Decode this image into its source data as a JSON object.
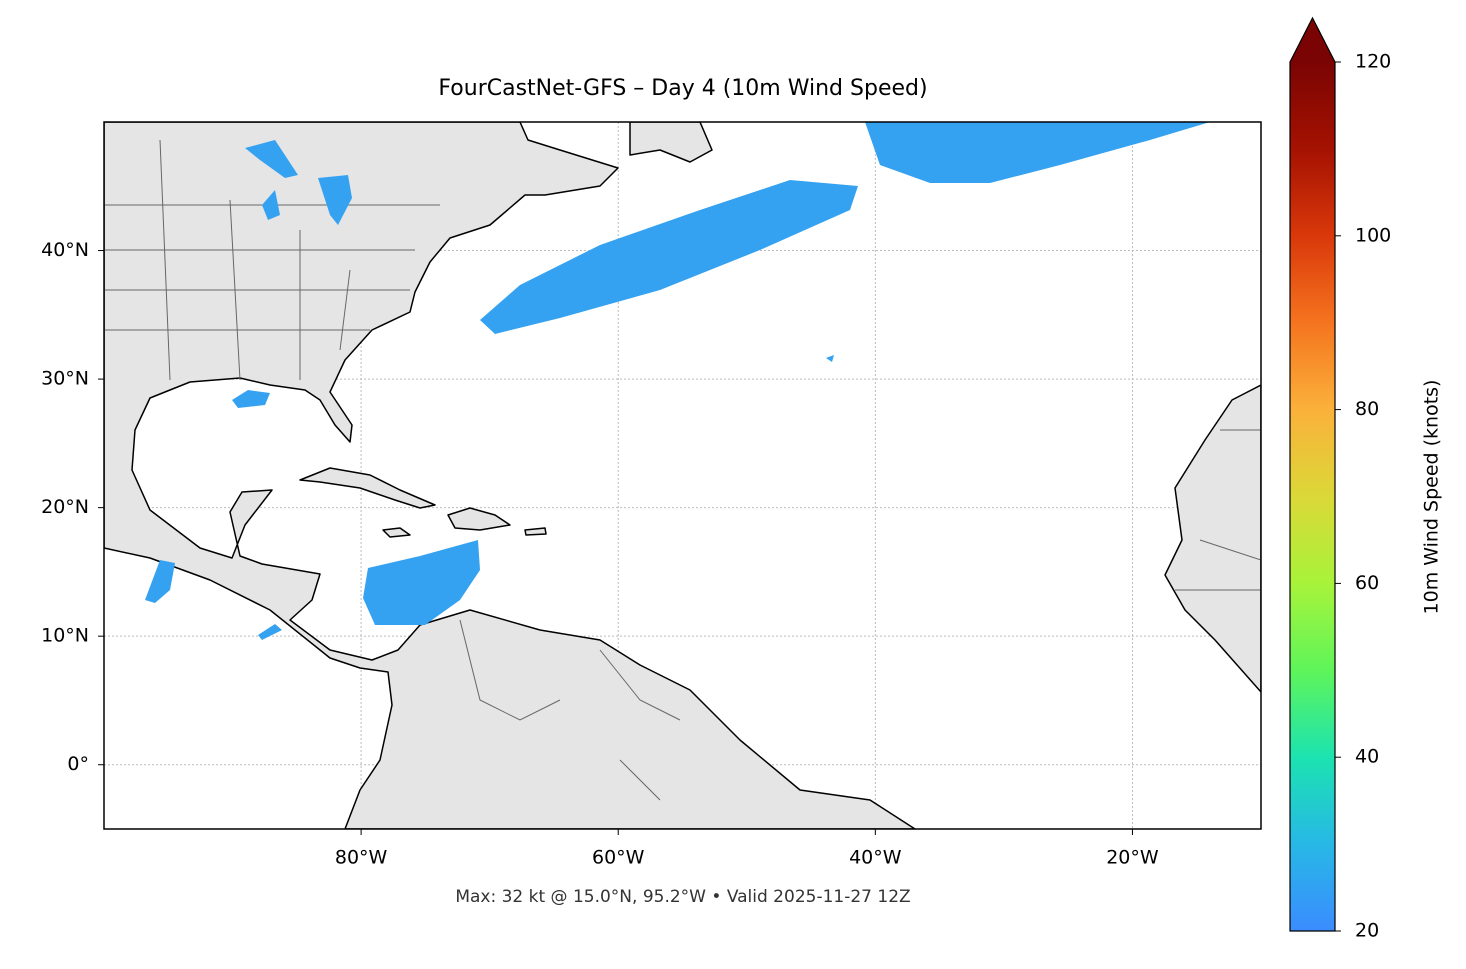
{
  "chart_data": {
    "type": "map",
    "title": "FourCastNet-GFS – Day 4 (10m Wind Speed)",
    "caption": "Max: 32 kt @ 15.0°N, 95.2°W • Valid 2025-11-27 12Z",
    "xlim": [
      -100,
      -10
    ],
    "ylim": [
      -5,
      50
    ],
    "xticks": [
      {
        "value": -80,
        "label": "80°W"
      },
      {
        "value": -60,
        "label": "60°W"
      },
      {
        "value": -40,
        "label": "40°W"
      },
      {
        "value": -20,
        "label": "20°W"
      }
    ],
    "yticks": [
      {
        "value": 0,
        "label": "0°"
      },
      {
        "value": 10,
        "label": "10°N"
      },
      {
        "value": 20,
        "label": "20°N"
      },
      {
        "value": 30,
        "label": "30°N"
      },
      {
        "value": 40,
        "label": "40°N"
      }
    ],
    "grid": true,
    "colorbar": {
      "label": "10m Wind Speed (knots)",
      "lim": [
        20,
        120
      ],
      "ticks": [
        20,
        40,
        60,
        80,
        100,
        120
      ],
      "colors": [
        "#3b8cff",
        "#27b8e6",
        "#1ce3b0",
        "#5ff55a",
        "#a8f33a",
        "#dbd838",
        "#fbb13a",
        "#f5741f",
        "#d9380a",
        "#a51202",
        "#7a0403"
      ],
      "extend": "max"
    }
  }
}
